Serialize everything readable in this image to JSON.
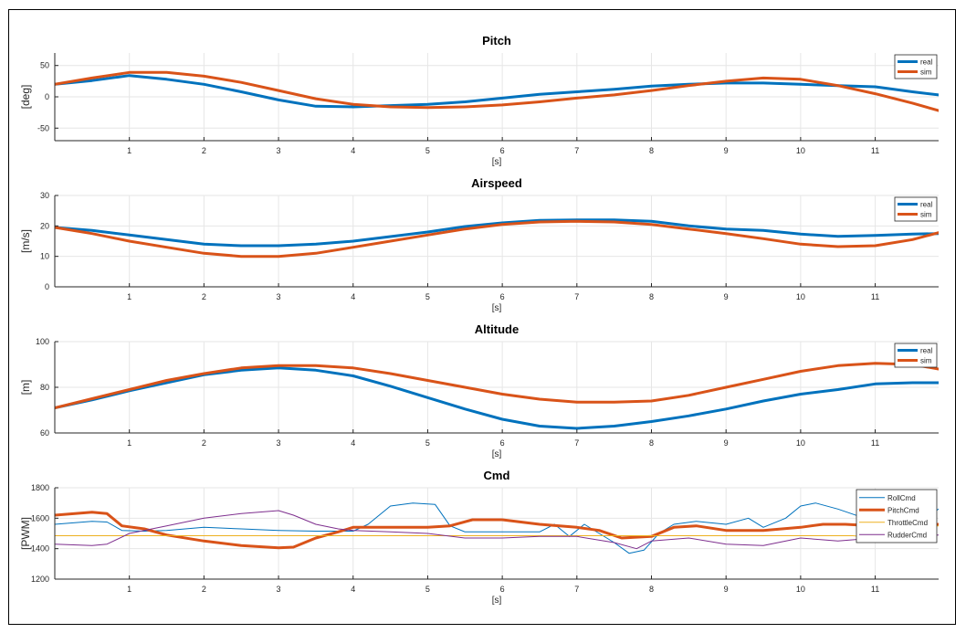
{
  "figure": {
    "background": "#ffffff",
    "grid_color": "#e6e6e6"
  },
  "chart_data": [
    {
      "type": "line",
      "title": "Pitch",
      "xlabel": "[s]",
      "ylabel": "[deg]",
      "xlim": [
        0,
        11.85
      ],
      "ylim": [
        -70,
        70
      ],
      "xticks": [
        1,
        2,
        3,
        4,
        5,
        6,
        7,
        8,
        9,
        10,
        11
      ],
      "yticks": [
        -50,
        0,
        50
      ],
      "grid": true,
      "legend": "top-right",
      "series": [
        {
          "name": "real",
          "color": "#0072BD",
          "width": 3,
          "x": [
            0,
            0.5,
            1,
            1.5,
            2,
            2.5,
            3,
            3.5,
            4,
            4.5,
            5,
            5.5,
            6,
            6.5,
            7,
            7.5,
            8,
            8.5,
            9,
            9.5,
            10,
            10.5,
            11,
            11.5,
            11.85
          ],
          "y": [
            20,
            26,
            34,
            28,
            20,
            8,
            -5,
            -15,
            -16,
            -14,
            -12,
            -8,
            -2,
            4,
            8,
            12,
            17,
            20,
            22,
            22,
            20,
            18,
            16,
            8,
            3
          ]
        },
        {
          "name": "sim",
          "color": "#D95319",
          "width": 3,
          "x": [
            0,
            0.5,
            1,
            1.5,
            2,
            2.5,
            3,
            3.5,
            4,
            4.5,
            5,
            5.5,
            6,
            6.5,
            7,
            7.5,
            8,
            8.5,
            9,
            9.5,
            10,
            10.5,
            11,
            11.5,
            11.85
          ],
          "y": [
            20,
            30,
            39,
            39,
            33,
            23,
            10,
            -3,
            -12,
            -16,
            -17,
            -16,
            -13,
            -8,
            -2,
            3,
            10,
            18,
            25,
            30,
            28,
            18,
            5,
            -10,
            -22
          ]
        }
      ]
    },
    {
      "type": "line",
      "title": "Airspeed",
      "xlabel": "[s]",
      "ylabel": "[m/s]",
      "xlim": [
        0,
        11.85
      ],
      "ylim": [
        0,
        30
      ],
      "xticks": [
        1,
        2,
        3,
        4,
        5,
        6,
        7,
        8,
        9,
        10,
        11
      ],
      "yticks": [
        0,
        10,
        20,
        30
      ],
      "grid": true,
      "legend": "top-right",
      "series": [
        {
          "name": "real",
          "color": "#0072BD",
          "width": 3,
          "x": [
            0,
            0.5,
            1,
            1.5,
            2,
            2.5,
            3,
            3.5,
            4,
            4.5,
            5,
            5.5,
            6,
            6.5,
            7,
            7.5,
            8,
            8.5,
            9,
            9.5,
            10,
            10.5,
            11,
            11.5,
            11.85
          ],
          "y": [
            19.5,
            18.5,
            17,
            15.5,
            14,
            13.5,
            13.5,
            14,
            15,
            16.5,
            18,
            19.8,
            21,
            21.8,
            22,
            22,
            21.5,
            20,
            19,
            18.5,
            17.3,
            16.6,
            16.9,
            17.3,
            17.5
          ]
        },
        {
          "name": "sim",
          "color": "#D95319",
          "width": 3,
          "x": [
            0,
            0.5,
            1,
            1.5,
            2,
            2.5,
            3,
            3.5,
            4,
            4.5,
            5,
            5.5,
            6,
            6.5,
            7,
            7.5,
            8,
            8.5,
            9,
            9.5,
            10,
            10.5,
            11,
            11.5,
            11.85
          ],
          "y": [
            19.5,
            17.5,
            15,
            13,
            11,
            10,
            10,
            11,
            13,
            15,
            17,
            19,
            20.5,
            21.3,
            21.5,
            21.3,
            20.5,
            19,
            17.5,
            15.8,
            14,
            13.2,
            13.5,
            15.5,
            17.8
          ]
        }
      ]
    },
    {
      "type": "line",
      "title": "Altitude",
      "xlabel": "[s]",
      "ylabel": "[m]",
      "xlim": [
        0,
        11.85
      ],
      "ylim": [
        60,
        100
      ],
      "xticks": [
        1,
        2,
        3,
        4,
        5,
        6,
        7,
        8,
        9,
        10,
        11
      ],
      "yticks": [
        60,
        80,
        100
      ],
      "grid": true,
      "legend": "top-right",
      "series": [
        {
          "name": "real",
          "color": "#0072BD",
          "width": 3,
          "x": [
            0,
            0.5,
            1,
            1.5,
            2,
            2.5,
            3,
            3.5,
            4,
            4.5,
            5,
            5.5,
            6,
            6.5,
            7,
            7.5,
            8,
            8.5,
            9,
            9.5,
            10,
            10.5,
            11,
            11.5,
            11.85
          ],
          "y": [
            71,
            74.5,
            78.5,
            82,
            85.5,
            87.5,
            88.5,
            87.5,
            85,
            80.5,
            75.5,
            70.5,
            66,
            63,
            62,
            63,
            65,
            67.5,
            70.5,
            74,
            77,
            79,
            81.5,
            82,
            82
          ]
        },
        {
          "name": "sim",
          "color": "#D95319",
          "width": 3,
          "x": [
            0,
            0.5,
            1,
            1.5,
            2,
            2.5,
            3,
            3.5,
            4,
            4.5,
            5,
            5.5,
            6,
            6.5,
            7,
            7.5,
            8,
            8.5,
            9,
            9.5,
            10,
            10.5,
            11,
            11.5,
            11.85
          ],
          "y": [
            71,
            75,
            79,
            83,
            86,
            88.5,
            89.5,
            89.5,
            88.5,
            86,
            83,
            80,
            77,
            74.8,
            73.5,
            73.5,
            74,
            76.5,
            80,
            83.5,
            87,
            89.5,
            90.5,
            90,
            88
          ]
        }
      ]
    },
    {
      "type": "line",
      "title": "Cmd",
      "xlabel": "[s]",
      "ylabel": "[PWM]",
      "xlim": [
        0,
        11.85
      ],
      "ylim": [
        1200,
        1800
      ],
      "xticks": [
        1,
        2,
        3,
        4,
        5,
        6,
        7,
        8,
        9,
        10,
        11
      ],
      "yticks": [
        1200,
        1400,
        1600,
        1800
      ],
      "grid": true,
      "legend": "top-right",
      "series": [
        {
          "name": "RollCmd",
          "color": "#0072BD",
          "width": 1,
          "x": [
            0,
            0.5,
            0.7,
            0.9,
            1.2,
            1.5,
            2,
            2.5,
            3,
            3.5,
            4,
            4.2,
            4.5,
            4.8,
            5.1,
            5.3,
            5.5,
            6,
            6.5,
            6.7,
            6.9,
            7.1,
            7.3,
            7.5,
            7.7,
            7.9,
            8.1,
            8.3,
            8.6,
            9,
            9.3,
            9.5,
            9.8,
            10,
            10.2,
            10.5,
            10.8,
            11,
            11.3,
            11.6,
            11.85
          ],
          "y": [
            1560,
            1580,
            1575,
            1520,
            1515,
            1520,
            1540,
            1530,
            1520,
            1515,
            1515,
            1560,
            1680,
            1700,
            1690,
            1550,
            1510,
            1510,
            1510,
            1560,
            1480,
            1560,
            1500,
            1440,
            1370,
            1390,
            1500,
            1560,
            1580,
            1560,
            1600,
            1540,
            1600,
            1680,
            1700,
            1660,
            1610,
            1550,
            1560,
            1580,
            1660
          ]
        },
        {
          "name": "PitchCmd",
          "color": "#D95319",
          "width": 3,
          "x": [
            0,
            0.5,
            0.7,
            0.9,
            1.2,
            1.5,
            2,
            2.5,
            3,
            3.2,
            3.5,
            3.8,
            4,
            4.5,
            5,
            5.3,
            5.6,
            6,
            6.5,
            7,
            7.3,
            7.6,
            8,
            8.3,
            8.6,
            9,
            9.5,
            10,
            10.3,
            10.6,
            11,
            11.5,
            11.85
          ],
          "y": [
            1620,
            1640,
            1630,
            1550,
            1530,
            1490,
            1450,
            1420,
            1405,
            1410,
            1470,
            1510,
            1540,
            1540,
            1540,
            1550,
            1590,
            1590,
            1560,
            1540,
            1520,
            1470,
            1480,
            1540,
            1550,
            1520,
            1520,
            1540,
            1560,
            1560,
            1550,
            1550,
            1560
          ]
        },
        {
          "name": "ThrottleCmd",
          "color": "#EDB120",
          "width": 1,
          "x": [
            0,
            10.5,
            10.7,
            10.8,
            11,
            11.3,
            11.6,
            11.85
          ],
          "y": [
            1485,
            1485,
            1485,
            1480,
            1550,
            1550,
            1550,
            1550
          ]
        },
        {
          "name": "RudderCmd",
          "color": "#7E2F8E",
          "width": 1,
          "x": [
            0,
            0.5,
            0.7,
            1,
            1.5,
            2,
            2.5,
            3,
            3.2,
            3.5,
            3.8,
            4,
            4.5,
            5,
            5.5,
            6,
            6.5,
            7,
            7.5,
            7.8,
            8,
            8.5,
            9,
            9.5,
            10,
            10.5,
            11,
            11.5,
            11.85
          ],
          "y": [
            1430,
            1420,
            1430,
            1500,
            1550,
            1600,
            1630,
            1650,
            1620,
            1560,
            1530,
            1520,
            1510,
            1500,
            1470,
            1470,
            1480,
            1480,
            1440,
            1400,
            1450,
            1470,
            1430,
            1420,
            1470,
            1450,
            1470,
            1480,
            1490
          ]
        }
      ]
    }
  ]
}
